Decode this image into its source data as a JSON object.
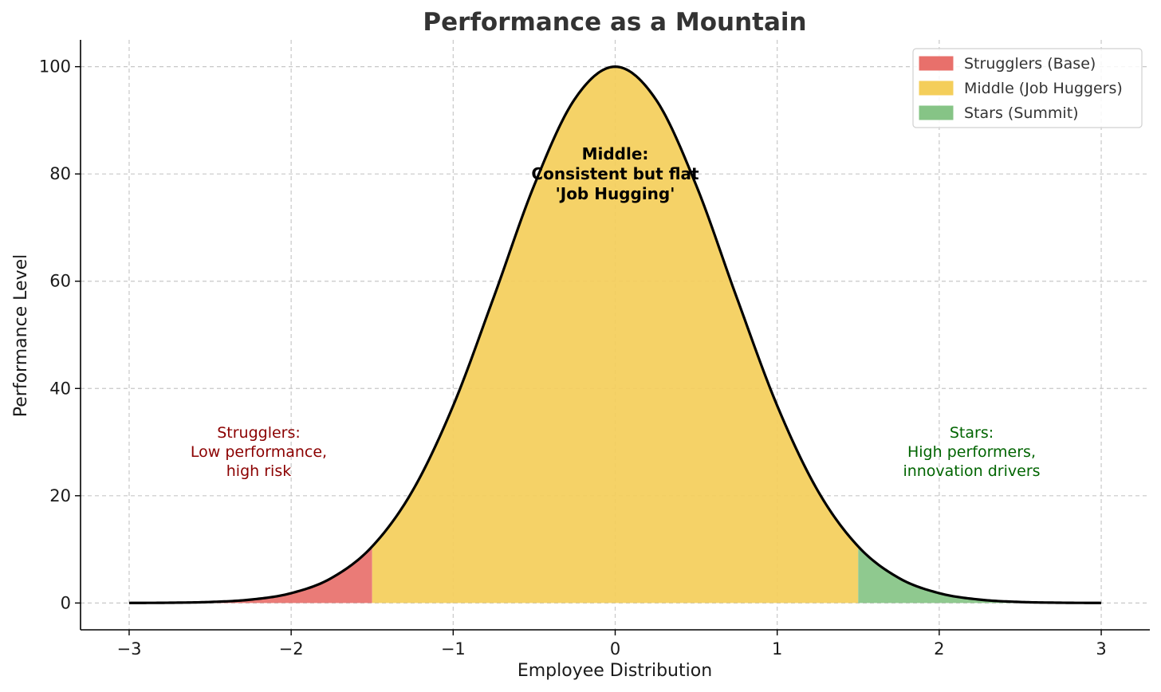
{
  "chart_data": {
    "type": "area",
    "title": "Performance as a Mountain",
    "xlabel": "Employee Distribution",
    "ylabel": "Performance Level",
    "xlim": [
      -3.3,
      3.3
    ],
    "ylim": [
      -5,
      105
    ],
    "xticks": [
      -3,
      -2,
      -1,
      0,
      1,
      2,
      3
    ],
    "xtick_labels": [
      "−3",
      "−2",
      "−1",
      "0",
      "1",
      "2",
      "3"
    ],
    "yticks": [
      0,
      20,
      40,
      60,
      80,
      100
    ],
    "ytick_labels": [
      "0",
      "20",
      "40",
      "60",
      "80",
      "100"
    ],
    "grid": true,
    "legend_position": "top-right",
    "curve": {
      "x": [
        -3.0,
        -2.75,
        -2.5,
        -2.25,
        -2.0,
        -1.75,
        -1.5,
        -1.25,
        -1.0,
        -0.75,
        -0.5,
        -0.25,
        0.0,
        0.25,
        0.5,
        0.75,
        1.0,
        1.25,
        1.5,
        1.75,
        2.0,
        2.25,
        2.5,
        2.75,
        3.0
      ],
      "y": [
        0.01,
        0.05,
        0.19,
        0.63,
        1.83,
        4.68,
        10.54,
        20.96,
        36.79,
        56.98,
        77.88,
        93.94,
        100.0,
        93.94,
        77.88,
        56.98,
        36.79,
        20.96,
        10.54,
        4.68,
        1.83,
        0.63,
        0.19,
        0.05,
        0.01
      ]
    },
    "series": [
      {
        "name": "Strugglers (Base)",
        "x_range": [
          -3.0,
          -1.5
        ],
        "color": "#e8706b"
      },
      {
        "name": "Middle (Job Huggers)",
        "x_range": [
          -1.5,
          1.5
        ],
        "color": "#f4ce5a"
      },
      {
        "name": "Stars (Summit)",
        "x_range": [
          1.5,
          3.0
        ],
        "color": "#86c486"
      }
    ],
    "annotations": [
      {
        "id": "middle",
        "lines": [
          "Middle:",
          "Consistent but flat",
          "'Job Hugging'"
        ],
        "x": 0,
        "y": 80,
        "color": "#000000",
        "bold": true
      },
      {
        "id": "strugglers",
        "lines": [
          "Strugglers:",
          "Low performance,",
          "high risk"
        ],
        "x": -2.2,
        "y": 28,
        "color": "#8b0000",
        "bold": false
      },
      {
        "id": "stars",
        "lines": [
          "Stars:",
          "High performers,",
          "innovation drivers"
        ],
        "x": 2.2,
        "y": 28,
        "color": "#006400",
        "bold": false
      }
    ]
  }
}
